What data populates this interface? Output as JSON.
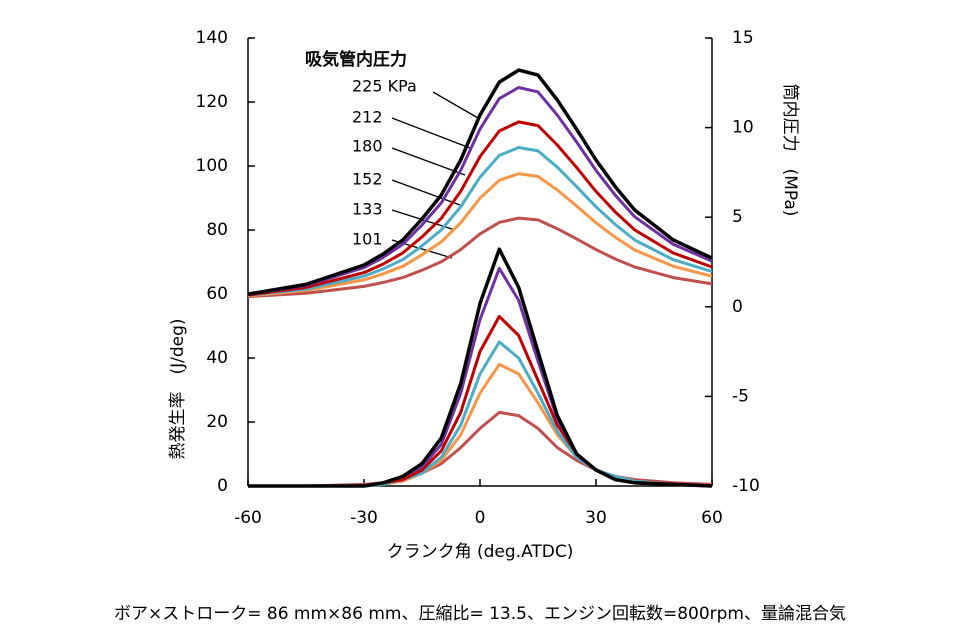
{
  "chart_data": {
    "type": "line",
    "x": [
      -60,
      -45,
      -30,
      -25,
      -20,
      -15,
      -10,
      -5,
      0,
      5,
      10,
      15,
      20,
      25,
      30,
      35,
      40,
      50,
      60
    ],
    "xlabel": "クランク角 (deg.ATDC)",
    "ylabel": "熱発生率　(J/deg)",
    "y2label": "筒内圧力　(MPa)",
    "legend_title": "吸気管内圧力",
    "footnote": "ボア×ストローク= 86 mm×86 mm、圧縮比= 13.5、エンジン回転数=800rpm、量論混合気",
    "xlim": [
      -60,
      60
    ],
    "xticks": [
      -60,
      -30,
      0,
      30,
      60
    ],
    "ylim": [
      0,
      140
    ],
    "yticks": [
      0,
      20,
      40,
      60,
      80,
      100,
      120,
      140
    ],
    "y2lim": [
      -10,
      15
    ],
    "y2ticks": [
      -10,
      -5,
      0,
      5,
      10,
      15
    ],
    "series": [
      {
        "name": "225 KPa",
        "color": "#000000",
        "axis": "y2",
        "values": [
          0.71,
          1.25,
          2.33,
          2.95,
          3.73,
          4.9,
          6.24,
          8.19,
          10.7,
          12.54,
          13.21,
          12.93,
          11.54,
          9.9,
          8.19,
          6.7,
          5.4,
          3.73,
          2.72
        ]
      },
      {
        "name": "212",
        "color": "#7030a0",
        "axis": "y2",
        "values": [
          0.69,
          1.19,
          2.19,
          2.76,
          3.48,
          4.57,
          5.8,
          7.61,
          9.92,
          11.62,
          12.24,
          11.99,
          10.7,
          9.19,
          7.61,
          6.23,
          5.03,
          3.48,
          2.55
        ]
      },
      {
        "name": "180",
        "color": "#c00000",
        "axis": "y2",
        "values": [
          0.66,
          1.08,
          1.91,
          2.39,
          3.0,
          3.9,
          4.94,
          6.44,
          8.38,
          9.81,
          10.32,
          10.11,
          9.03,
          7.77,
          6.44,
          5.29,
          4.29,
          3.0,
          2.22
        ]
      },
      {
        "name": "152",
        "color": "#4bacc6",
        "axis": "y2",
        "values": [
          0.64,
          0.99,
          1.71,
          2.12,
          2.63,
          3.4,
          4.29,
          5.58,
          7.23,
          8.45,
          8.89,
          8.7,
          7.79,
          6.7,
          5.58,
          4.59,
          3.73,
          2.63,
          1.97
        ]
      },
      {
        "name": "133",
        "color": "#f79646",
        "axis": "y2",
        "values": [
          0.61,
          0.91,
          1.5,
          1.84,
          2.26,
          2.9,
          3.63,
          4.69,
          6.06,
          7.06,
          7.43,
          7.27,
          6.52,
          5.62,
          4.69,
          3.88,
          3.17,
          2.26,
          1.71
        ]
      },
      {
        "name": "101",
        "color": "#c0504d",
        "axis": "y2",
        "values": [
          0.57,
          0.76,
          1.14,
          1.36,
          1.63,
          2.04,
          2.51,
          3.19,
          4.07,
          4.71,
          4.95,
          4.85,
          4.36,
          3.79,
          3.19,
          2.67,
          2.22,
          1.63,
          1.28
        ]
      },
      {
        "color": "#000000",
        "values": [
          0,
          0,
          0,
          1,
          3,
          7,
          15,
          32,
          57,
          74,
          62,
          42,
          22,
          10,
          5,
          2,
          1,
          0.5,
          0
        ]
      },
      {
        "color": "#7030a0",
        "values": [
          0,
          0,
          0,
          1,
          3,
          6,
          13,
          29,
          52,
          68,
          58,
          39,
          21,
          10,
          5,
          2,
          1,
          0.5,
          0
        ]
      },
      {
        "color": "#c00000",
        "values": [
          0,
          0,
          0,
          1,
          2,
          5,
          11,
          23,
          42,
          53,
          47,
          33,
          19,
          10,
          5,
          2,
          1,
          0.5,
          0
        ]
      },
      {
        "color": "#4bacc6",
        "values": [
          0,
          0,
          0,
          0.5,
          2,
          4,
          9,
          19,
          35,
          45,
          40,
          29,
          17,
          9,
          5,
          3,
          1.5,
          0.5,
          0
        ]
      },
      {
        "color": "#f79646",
        "values": [
          0,
          0,
          0,
          0.5,
          1.5,
          4,
          8,
          16,
          29,
          38,
          35,
          26,
          16,
          9,
          5,
          3,
          1.5,
          0.5,
          0
        ]
      },
      {
        "color": "#c0504d",
        "values": [
          0,
          0,
          0.5,
          1,
          2,
          4,
          7,
          12,
          18,
          23,
          22,
          18,
          12,
          8,
          5,
          3,
          2,
          1,
          0.5
        ]
      }
    ]
  }
}
